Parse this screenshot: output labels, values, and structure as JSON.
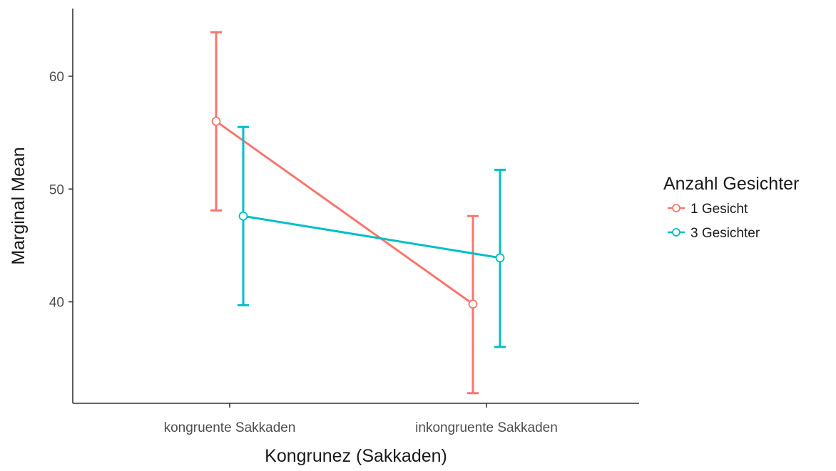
{
  "chart_data": {
    "type": "line",
    "xlabel": "Kongrunez (Sakkaden)",
    "ylabel": "Marginal Mean",
    "categories": [
      "kongruente Sakkaden",
      "inkongruente Sakkaden"
    ],
    "yticks": [
      40,
      50,
      60
    ],
    "ylim": [
      31,
      66
    ],
    "grid": false,
    "legend": {
      "title": "Anzahl Gesichter",
      "placement": "right"
    },
    "series": [
      {
        "name": "1 Gesicht",
        "color": "#F8766D",
        "values": [
          56.0,
          39.8
        ],
        "ci_lower": [
          48.1,
          31.9
        ],
        "ci_upper": [
          63.9,
          47.6
        ]
      },
      {
        "name": "3 Gesichter",
        "color": "#00BFC4",
        "values": [
          47.6,
          43.9
        ],
        "ci_lower": [
          39.7,
          36.0
        ],
        "ci_upper": [
          55.5,
          51.7
        ]
      }
    ]
  }
}
